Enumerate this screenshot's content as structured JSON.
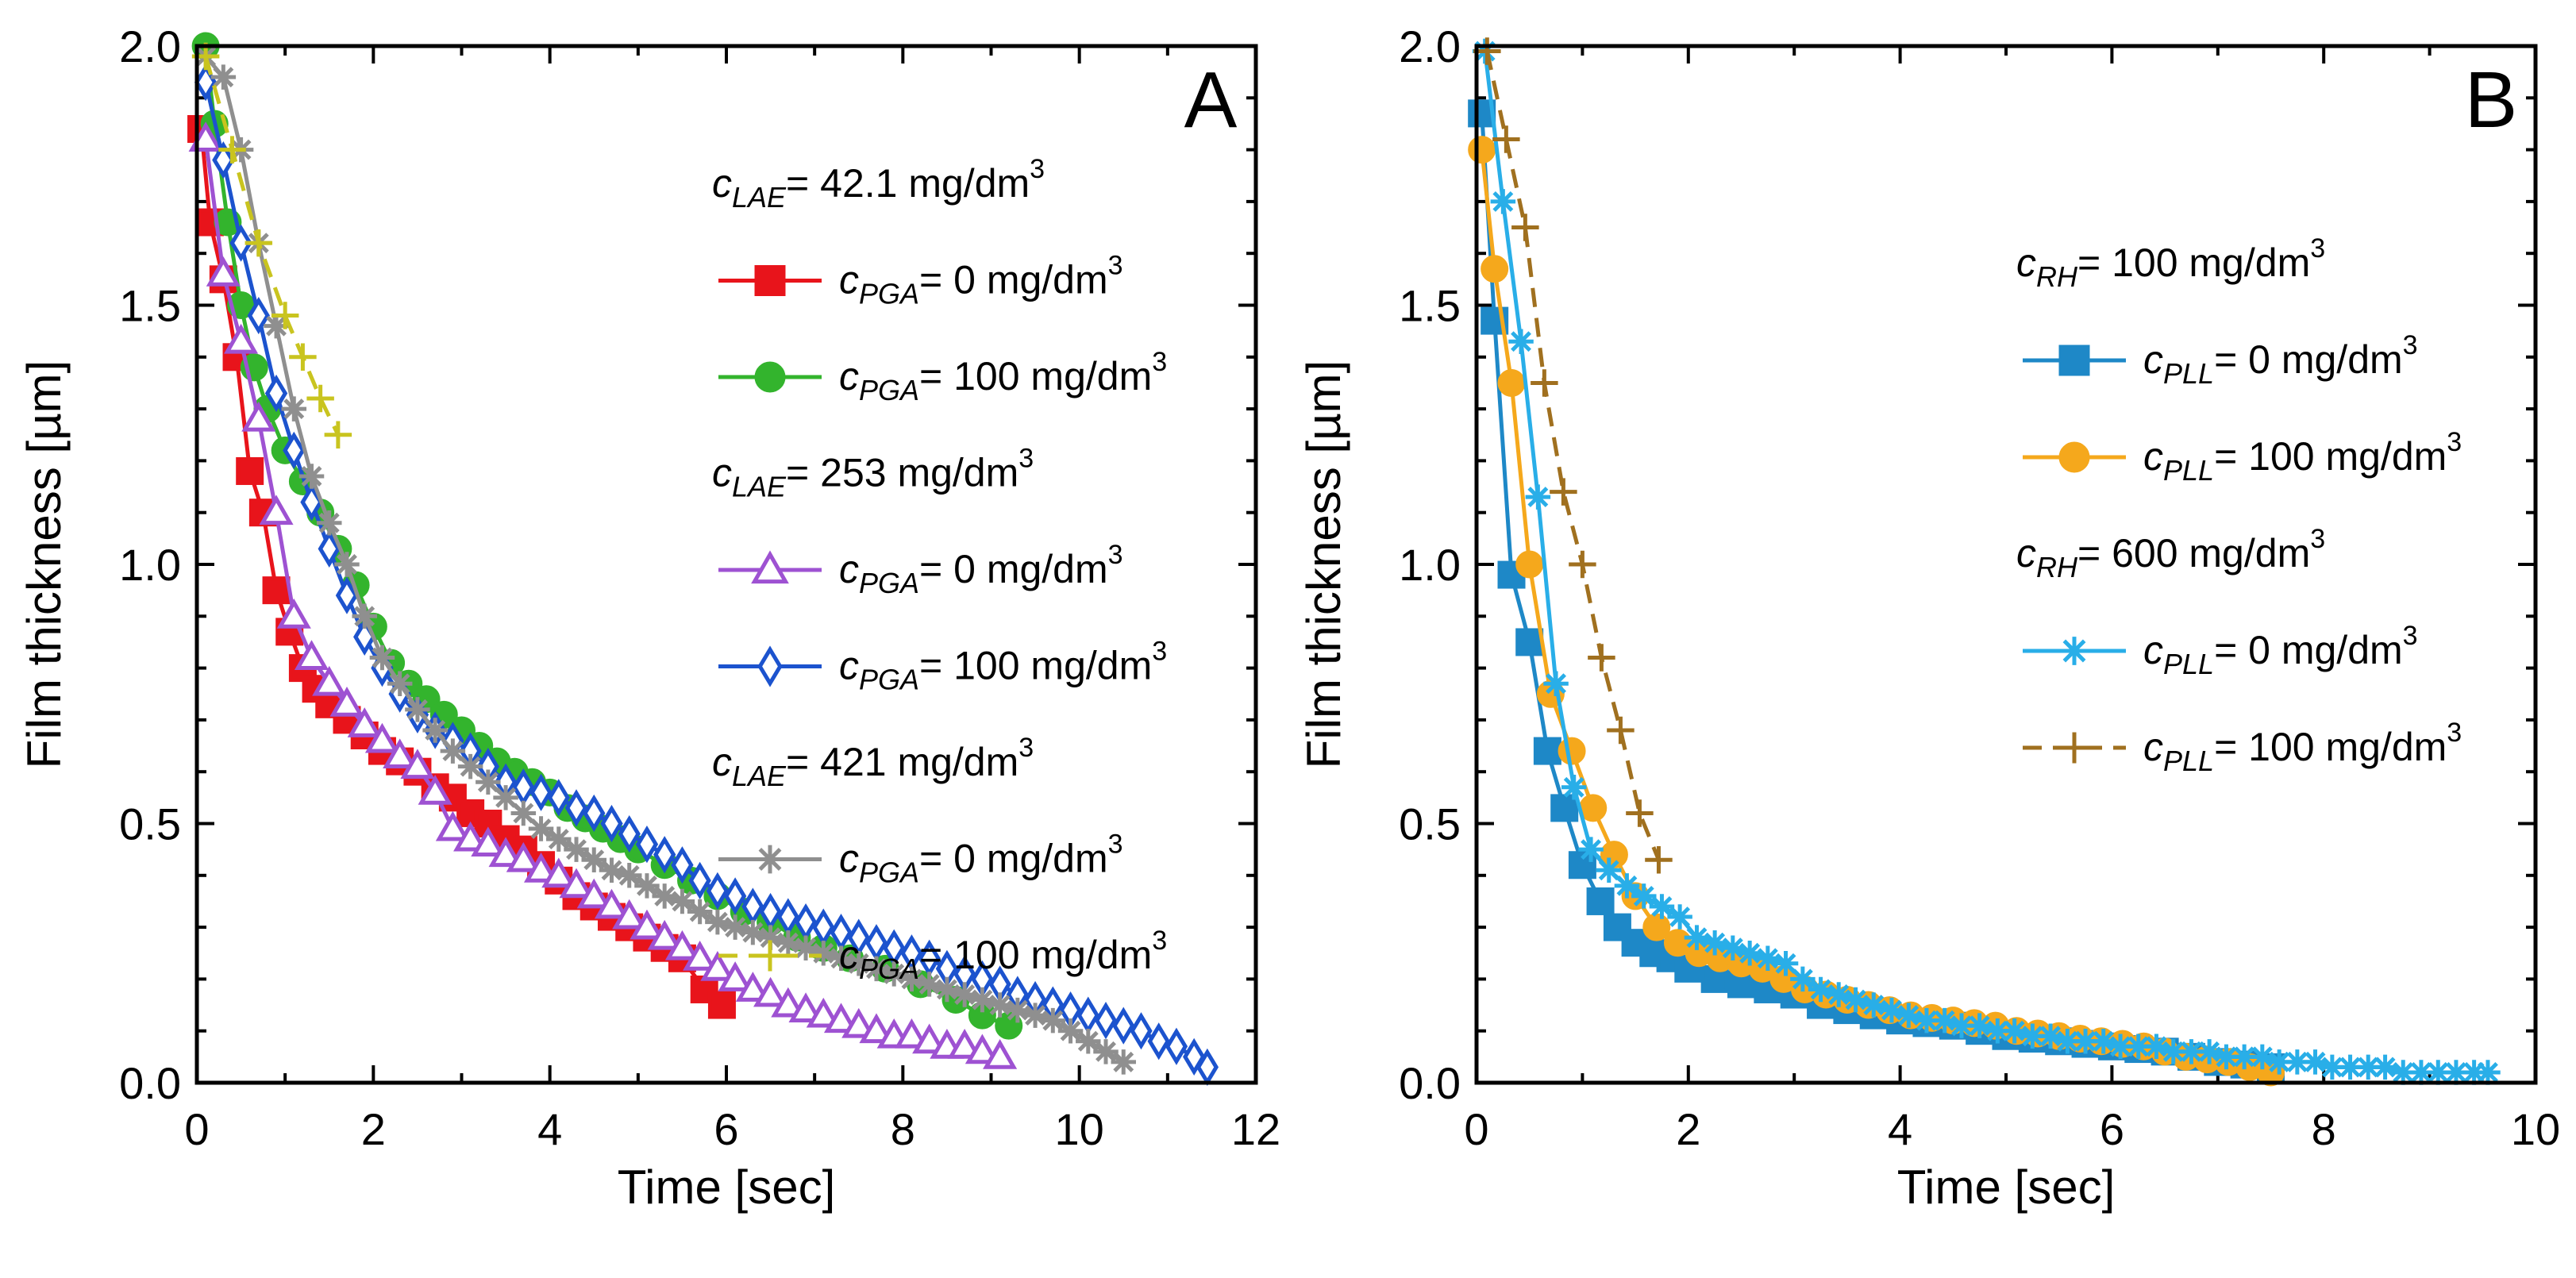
{
  "chart_data": [
    {
      "type": "line",
      "panel_label": "A",
      "xlabel": "Time [sec]",
      "ylabel": "Film thickness [µm]",
      "xlim": [
        0,
        12
      ],
      "ylim": [
        0,
        2.0
      ],
      "xticks": [
        "0",
        "2",
        "4",
        "6",
        "8",
        "10",
        "12"
      ],
      "yticks": [
        "0.0",
        "0.5",
        "1.0",
        "1.5",
        "2.0"
      ],
      "legend": [
        {
          "type": "header",
          "sym": "c",
          "sub": "LAE",
          "text": "= 42.1 mg/dm",
          "sup": "3"
        },
        {
          "type": "series",
          "series": 0
        },
        {
          "type": "series",
          "series": 1
        },
        {
          "type": "header",
          "sym": "c",
          "sub": "LAE",
          "text": "= 253 mg/dm",
          "sup": "3"
        },
        {
          "type": "series",
          "series": 2
        },
        {
          "type": "series",
          "series": 3
        },
        {
          "type": "header",
          "sym": "c",
          "sub": "LAE",
          "text": "= 421 mg/dm",
          "sup": "3"
        },
        {
          "type": "series",
          "series": 4
        },
        {
          "type": "series",
          "series": 5
        }
      ],
      "series": [
        {
          "sym": "c",
          "sub": "PGA",
          "text": "= 0 mg/dm",
          "sup": "3",
          "color": "#e8141b",
          "marker": "square",
          "fill": true,
          "dash": "",
          "x": [
            0.05,
            0.15,
            0.3,
            0.45,
            0.6,
            0.75,
            0.9,
            1.05,
            1.2,
            1.35,
            1.5,
            1.7,
            1.9,
            2.1,
            2.3,
            2.5,
            2.7,
            2.9,
            3.1,
            3.3,
            3.5,
            3.7,
            3.9,
            4.1,
            4.3,
            4.5,
            4.7,
            4.9,
            5.1,
            5.3,
            5.5,
            5.75,
            5.95
          ],
          "y": [
            1.84,
            1.66,
            1.55,
            1.4,
            1.18,
            1.1,
            0.95,
            0.87,
            0.8,
            0.76,
            0.73,
            0.7,
            0.67,
            0.64,
            0.62,
            0.6,
            0.57,
            0.55,
            0.52,
            0.5,
            0.47,
            0.45,
            0.42,
            0.39,
            0.36,
            0.34,
            0.32,
            0.3,
            0.28,
            0.26,
            0.24,
            0.18,
            0.15
          ]
        },
        {
          "sym": "c",
          "sub": "PGA",
          "text": "= 100 mg/dm",
          "sup": "3",
          "color": "#33b42d",
          "marker": "circle",
          "fill": true,
          "dash": "",
          "x": [
            0.1,
            0.2,
            0.35,
            0.5,
            0.65,
            0.8,
            1.0,
            1.2,
            1.4,
            1.6,
            1.8,
            2.0,
            2.2,
            2.4,
            2.6,
            2.8,
            3.0,
            3.2,
            3.4,
            3.6,
            3.8,
            4.0,
            4.2,
            4.4,
            4.6,
            4.8,
            5.0,
            5.3,
            5.6,
            5.9,
            6.2,
            6.5,
            6.8,
            7.1,
            7.4,
            7.8,
            8.2,
            8.6,
            8.9,
            9.2
          ],
          "y": [
            2.0,
            1.85,
            1.66,
            1.5,
            1.38,
            1.3,
            1.22,
            1.16,
            1.1,
            1.03,
            0.96,
            0.88,
            0.81,
            0.77,
            0.74,
            0.71,
            0.68,
            0.65,
            0.62,
            0.6,
            0.58,
            0.56,
            0.53,
            0.51,
            0.49,
            0.47,
            0.45,
            0.42,
            0.39,
            0.36,
            0.33,
            0.31,
            0.28,
            0.26,
            0.24,
            0.22,
            0.19,
            0.16,
            0.13,
            0.11
          ]
        },
        {
          "sym": "c",
          "sub": "PGA",
          "text": "= 0 mg/dm",
          "sup": "3",
          "color": "#9e52d2",
          "marker": "triangle",
          "fill": false,
          "dash": "",
          "x": [
            0.1,
            0.3,
            0.5,
            0.7,
            0.9,
            1.1,
            1.3,
            1.5,
            1.7,
            1.9,
            2.1,
            2.3,
            2.5,
            2.7,
            2.9,
            3.1,
            3.3,
            3.5,
            3.7,
            3.9,
            4.1,
            4.3,
            4.5,
            4.7,
            4.9,
            5.1,
            5.3,
            5.5,
            5.7,
            5.9,
            6.1,
            6.3,
            6.5,
            6.7,
            6.9,
            7.1,
            7.3,
            7.5,
            7.7,
            7.9,
            8.1,
            8.3,
            8.5,
            8.7,
            8.9,
            9.1
          ],
          "y": [
            1.82,
            1.56,
            1.43,
            1.28,
            1.1,
            0.9,
            0.82,
            0.77,
            0.73,
            0.69,
            0.66,
            0.63,
            0.61,
            0.56,
            0.49,
            0.47,
            0.46,
            0.44,
            0.43,
            0.41,
            0.4,
            0.38,
            0.36,
            0.34,
            0.32,
            0.3,
            0.28,
            0.26,
            0.24,
            0.22,
            0.2,
            0.18,
            0.17,
            0.15,
            0.14,
            0.13,
            0.12,
            0.11,
            0.1,
            0.09,
            0.09,
            0.08,
            0.07,
            0.07,
            0.06,
            0.05
          ]
        },
        {
          "sym": "c",
          "sub": "PGA",
          "text": "= 100 mg/dm",
          "sup": "3",
          "color": "#1c53ce",
          "marker": "diamond",
          "fill": false,
          "dash": "",
          "x": [
            0.1,
            0.3,
            0.5,
            0.7,
            0.9,
            1.1,
            1.3,
            1.5,
            1.7,
            1.9,
            2.1,
            2.3,
            2.5,
            2.7,
            2.9,
            3.1,
            3.3,
            3.5,
            3.7,
            3.9,
            4.1,
            4.3,
            4.5,
            4.7,
            4.9,
            5.1,
            5.3,
            5.5,
            5.7,
            5.9,
            6.1,
            6.3,
            6.5,
            6.7,
            6.9,
            7.1,
            7.3,
            7.5,
            7.7,
            7.9,
            8.1,
            8.3,
            8.5,
            8.7,
            8.9,
            9.1,
            9.3,
            9.5,
            9.7,
            9.9,
            10.1,
            10.3,
            10.5,
            10.7,
            10.9,
            11.1,
            11.3,
            11.45
          ],
          "y": [
            1.93,
            1.78,
            1.62,
            1.48,
            1.33,
            1.22,
            1.12,
            1.03,
            0.94,
            0.86,
            0.8,
            0.75,
            0.71,
            0.68,
            0.66,
            0.64,
            0.61,
            0.58,
            0.57,
            0.56,
            0.55,
            0.53,
            0.52,
            0.5,
            0.48,
            0.46,
            0.44,
            0.42,
            0.39,
            0.37,
            0.36,
            0.34,
            0.33,
            0.32,
            0.31,
            0.3,
            0.29,
            0.28,
            0.27,
            0.26,
            0.25,
            0.24,
            0.22,
            0.21,
            0.2,
            0.19,
            0.17,
            0.16,
            0.15,
            0.14,
            0.13,
            0.12,
            0.11,
            0.1,
            0.08,
            0.07,
            0.05,
            0.03
          ]
        },
        {
          "sym": "c",
          "sub": "PGA",
          "text": "= 0 mg/dm",
          "sup": "3",
          "color": "#8f8f8f",
          "marker": "asterisk",
          "fill": false,
          "dash": "",
          "x": [
            0.1,
            0.3,
            0.5,
            0.7,
            0.9,
            1.1,
            1.3,
            1.5,
            1.7,
            1.9,
            2.1,
            2.3,
            2.5,
            2.7,
            2.9,
            3.1,
            3.3,
            3.5,
            3.7,
            3.9,
            4.1,
            4.3,
            4.5,
            4.7,
            4.9,
            5.1,
            5.3,
            5.5,
            5.7,
            5.9,
            6.1,
            6.3,
            6.5,
            6.7,
            6.9,
            7.1,
            7.3,
            7.5,
            7.7,
            7.9,
            8.1,
            8.3,
            8.5,
            8.7,
            8.9,
            9.1,
            9.3,
            9.5,
            9.7,
            9.9,
            10.1,
            10.3,
            10.5
          ],
          "y": [
            1.98,
            1.94,
            1.8,
            1.62,
            1.46,
            1.3,
            1.17,
            1.08,
            1.0,
            0.9,
            0.82,
            0.77,
            0.72,
            0.68,
            0.64,
            0.61,
            0.58,
            0.55,
            0.52,
            0.49,
            0.47,
            0.45,
            0.43,
            0.41,
            0.4,
            0.38,
            0.36,
            0.35,
            0.33,
            0.31,
            0.3,
            0.29,
            0.28,
            0.27,
            0.26,
            0.25,
            0.24,
            0.23,
            0.22,
            0.21,
            0.2,
            0.19,
            0.18,
            0.17,
            0.16,
            0.15,
            0.14,
            0.13,
            0.12,
            0.1,
            0.08,
            0.06,
            0.04
          ]
        },
        {
          "sym": "c",
          "sub": "PGA",
          "text": "= 100 mg/dm",
          "sup": "3",
          "color": "#c9c41f",
          "marker": "plus",
          "fill": false,
          "dash": "24,14",
          "x": [
            0.1,
            0.4,
            0.7,
            1.0,
            1.2,
            1.4,
            1.6
          ],
          "y": [
            1.98,
            1.8,
            1.62,
            1.48,
            1.4,
            1.32,
            1.25
          ]
        }
      ]
    },
    {
      "type": "line",
      "panel_label": "B",
      "xlabel": "Time [sec]",
      "ylabel": "Film thickness [µm]",
      "xlim": [
        0,
        10
      ],
      "ylim": [
        0,
        2.0
      ],
      "xticks": [
        "0",
        "2",
        "4",
        "6",
        "8",
        "10"
      ],
      "yticks": [
        "0.0",
        "0.5",
        "1.0",
        "1.5",
        "2.0"
      ],
      "legend": [
        {
          "type": "header",
          "sym": "c",
          "sub": "RH",
          "text": "= 100 mg/dm",
          "sup": "3"
        },
        {
          "type": "series",
          "series": 0
        },
        {
          "type": "series",
          "series": 1
        },
        {
          "type": "header",
          "sym": "c",
          "sub": "RH",
          "text": "= 600 mg/dm",
          "sup": "3"
        },
        {
          "type": "series",
          "series": 2
        },
        {
          "type": "series",
          "series": 3
        }
      ],
      "series": [
        {
          "sym": "c",
          "sub": "PLL",
          "text": "= 0 mg/dm",
          "sup": "3",
          "color": "#1e88c7",
          "marker": "square",
          "fill": true,
          "dash": "",
          "x": [
            0.05,
            0.17,
            0.33,
            0.5,
            0.67,
            0.83,
            1.0,
            1.17,
            1.33,
            1.5,
            1.67,
            1.83,
            2.0,
            2.25,
            2.5,
            2.75,
            3.0,
            3.25,
            3.5,
            3.75,
            4.0,
            4.25,
            4.5,
            4.75,
            5.0,
            5.25,
            5.5,
            5.75,
            6.0,
            6.25,
            6.5,
            6.75,
            7.0,
            7.25,
            7.5
          ],
          "y": [
            1.87,
            1.47,
            0.98,
            0.85,
            0.64,
            0.53,
            0.42,
            0.35,
            0.3,
            0.27,
            0.25,
            0.24,
            0.22,
            0.2,
            0.19,
            0.18,
            0.17,
            0.15,
            0.14,
            0.13,
            0.12,
            0.115,
            0.11,
            0.1,
            0.09,
            0.085,
            0.08,
            0.075,
            0.07,
            0.065,
            0.06,
            0.05,
            0.04,
            0.035,
            0.03
          ]
        },
        {
          "sym": "c",
          "sub": "PLL",
          "text": "= 100 mg/dm",
          "sup": "3",
          "color": "#f5a81c",
          "marker": "circle",
          "fill": true,
          "dash": "",
          "x": [
            0.05,
            0.17,
            0.33,
            0.5,
            0.7,
            0.9,
            1.1,
            1.3,
            1.5,
            1.7,
            1.9,
            2.1,
            2.3,
            2.5,
            2.7,
            2.9,
            3.1,
            3.3,
            3.5,
            3.7,
            3.9,
            4.1,
            4.3,
            4.5,
            4.7,
            4.9,
            5.1,
            5.3,
            5.5,
            5.7,
            5.9,
            6.1,
            6.3,
            6.5,
            6.7,
            6.9,
            7.1,
            7.3,
            7.5
          ],
          "y": [
            1.8,
            1.57,
            1.35,
            1.0,
            0.75,
            0.64,
            0.53,
            0.44,
            0.36,
            0.3,
            0.27,
            0.25,
            0.24,
            0.23,
            0.22,
            0.2,
            0.18,
            0.17,
            0.16,
            0.15,
            0.14,
            0.13,
            0.125,
            0.12,
            0.115,
            0.11,
            0.1,
            0.095,
            0.09,
            0.085,
            0.08,
            0.075,
            0.07,
            0.06,
            0.05,
            0.045,
            0.04,
            0.03,
            0.02
          ]
        },
        {
          "sym": "c",
          "sub": "PLL",
          "text": "= 0 mg/dm",
          "sup": "3",
          "color": "#29aee8",
          "marker": "asterisk",
          "fill": false,
          "dash": "",
          "x": [
            0.08,
            0.25,
            0.42,
            0.58,
            0.75,
            0.92,
            1.08,
            1.25,
            1.42,
            1.58,
            1.75,
            1.92,
            2.08,
            2.25,
            2.42,
            2.58,
            2.75,
            2.92,
            3.08,
            3.25,
            3.42,
            3.58,
            3.75,
            3.92,
            4.08,
            4.25,
            4.42,
            4.58,
            4.75,
            4.92,
            5.08,
            5.25,
            5.42,
            5.58,
            5.75,
            5.92,
            6.08,
            6.25,
            6.42,
            6.58,
            6.75,
            6.92,
            7.08,
            7.25,
            7.42,
            7.58,
            7.75,
            7.92,
            8.08,
            8.25,
            8.42,
            8.58,
            8.75,
            8.92,
            9.08,
            9.25,
            9.42,
            9.55
          ],
          "y": [
            1.99,
            1.7,
            1.43,
            1.13,
            0.77,
            0.57,
            0.45,
            0.41,
            0.38,
            0.36,
            0.34,
            0.32,
            0.28,
            0.27,
            0.26,
            0.25,
            0.24,
            0.23,
            0.2,
            0.18,
            0.17,
            0.16,
            0.15,
            0.14,
            0.13,
            0.12,
            0.12,
            0.11,
            0.11,
            0.1,
            0.1,
            0.09,
            0.09,
            0.08,
            0.08,
            0.08,
            0.07,
            0.07,
            0.07,
            0.06,
            0.06,
            0.06,
            0.05,
            0.05,
            0.05,
            0.04,
            0.04,
            0.04,
            0.03,
            0.03,
            0.03,
            0.03,
            0.02,
            0.02,
            0.02,
            0.02,
            0.02,
            0.02
          ]
        },
        {
          "sym": "c",
          "sub": "PLL",
          "text": "= 100 mg/dm",
          "sup": "3",
          "color": "#a0701f",
          "marker": "plus",
          "fill": false,
          "dash": "24,14",
          "x": [
            0.1,
            0.28,
            0.46,
            0.64,
            0.82,
            1.0,
            1.18,
            1.36,
            1.54,
            1.72
          ],
          "y": [
            1.99,
            1.82,
            1.65,
            1.35,
            1.14,
            1.0,
            0.82,
            0.68,
            0.52,
            0.43
          ]
        }
      ]
    }
  ]
}
